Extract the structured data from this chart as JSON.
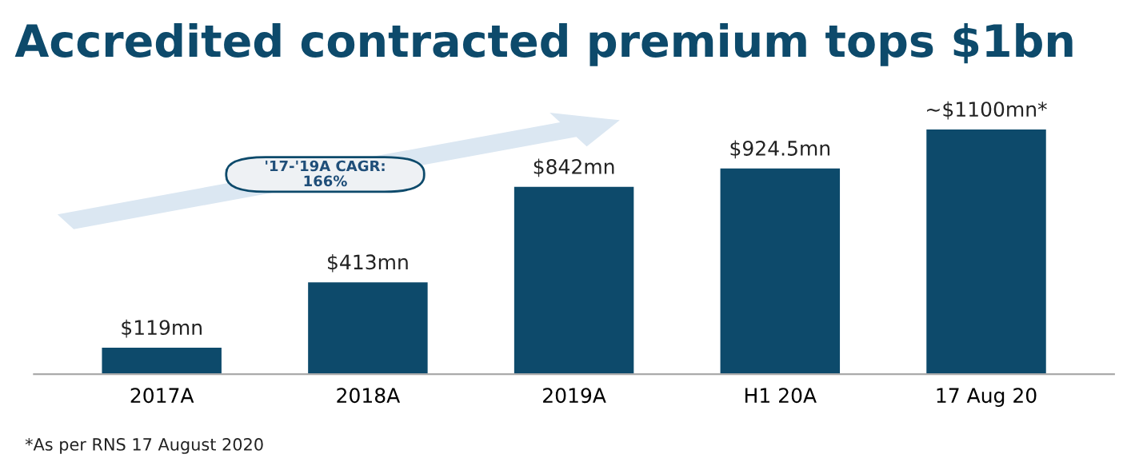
{
  "chart_data": {
    "type": "bar",
    "title": "Accredited contracted premium tops $1bn",
    "categories": [
      "2017A",
      "2018A",
      "2019A",
      "H1 20A",
      "17 Aug 20"
    ],
    "values": [
      119,
      413,
      842,
      924.5,
      1100
    ],
    "value_labels": [
      "$119mn",
      "$413mn",
      "$842mn",
      "$924.5mn",
      "~$1100mn*"
    ],
    "color": "#0d4a6b",
    "annotations": [
      "'17-'19A CAGR:\n166%",
      "*As per RNS 17 August 2020"
    ]
  }
}
